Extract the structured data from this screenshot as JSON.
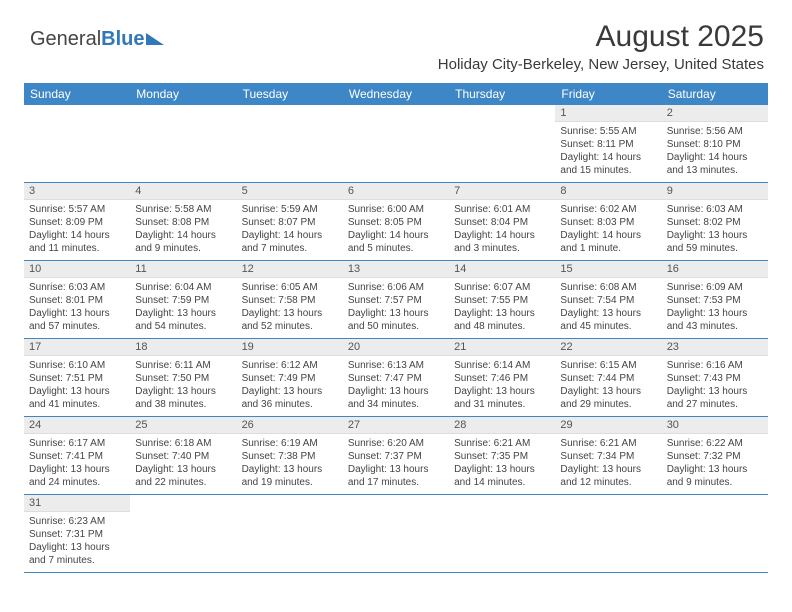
{
  "logo": {
    "part1": "General",
    "part2": "Blue"
  },
  "header": {
    "title": "August 2025",
    "subtitle": "Holiday City-Berkeley, New Jersey, United States"
  },
  "colors": {
    "header_bg": "#3d87c7",
    "rule": "#3d87c7",
    "daynum_bg": "#ececec"
  },
  "day_headers": [
    "Sunday",
    "Monday",
    "Tuesday",
    "Wednesday",
    "Thursday",
    "Friday",
    "Saturday"
  ],
  "weeks": [
    [
      {
        "n": "",
        "sr": "",
        "ss": "",
        "dl": ""
      },
      {
        "n": "",
        "sr": "",
        "ss": "",
        "dl": ""
      },
      {
        "n": "",
        "sr": "",
        "ss": "",
        "dl": ""
      },
      {
        "n": "",
        "sr": "",
        "ss": "",
        "dl": ""
      },
      {
        "n": "",
        "sr": "",
        "ss": "",
        "dl": ""
      },
      {
        "n": "1",
        "sr": "Sunrise: 5:55 AM",
        "ss": "Sunset: 8:11 PM",
        "dl": "Daylight: 14 hours and 15 minutes."
      },
      {
        "n": "2",
        "sr": "Sunrise: 5:56 AM",
        "ss": "Sunset: 8:10 PM",
        "dl": "Daylight: 14 hours and 13 minutes."
      }
    ],
    [
      {
        "n": "3",
        "sr": "Sunrise: 5:57 AM",
        "ss": "Sunset: 8:09 PM",
        "dl": "Daylight: 14 hours and 11 minutes."
      },
      {
        "n": "4",
        "sr": "Sunrise: 5:58 AM",
        "ss": "Sunset: 8:08 PM",
        "dl": "Daylight: 14 hours and 9 minutes."
      },
      {
        "n": "5",
        "sr": "Sunrise: 5:59 AM",
        "ss": "Sunset: 8:07 PM",
        "dl": "Daylight: 14 hours and 7 minutes."
      },
      {
        "n": "6",
        "sr": "Sunrise: 6:00 AM",
        "ss": "Sunset: 8:05 PM",
        "dl": "Daylight: 14 hours and 5 minutes."
      },
      {
        "n": "7",
        "sr": "Sunrise: 6:01 AM",
        "ss": "Sunset: 8:04 PM",
        "dl": "Daylight: 14 hours and 3 minutes."
      },
      {
        "n": "8",
        "sr": "Sunrise: 6:02 AM",
        "ss": "Sunset: 8:03 PM",
        "dl": "Daylight: 14 hours and 1 minute."
      },
      {
        "n": "9",
        "sr": "Sunrise: 6:03 AM",
        "ss": "Sunset: 8:02 PM",
        "dl": "Daylight: 13 hours and 59 minutes."
      }
    ],
    [
      {
        "n": "10",
        "sr": "Sunrise: 6:03 AM",
        "ss": "Sunset: 8:01 PM",
        "dl": "Daylight: 13 hours and 57 minutes."
      },
      {
        "n": "11",
        "sr": "Sunrise: 6:04 AM",
        "ss": "Sunset: 7:59 PM",
        "dl": "Daylight: 13 hours and 54 minutes."
      },
      {
        "n": "12",
        "sr": "Sunrise: 6:05 AM",
        "ss": "Sunset: 7:58 PM",
        "dl": "Daylight: 13 hours and 52 minutes."
      },
      {
        "n": "13",
        "sr": "Sunrise: 6:06 AM",
        "ss": "Sunset: 7:57 PM",
        "dl": "Daylight: 13 hours and 50 minutes."
      },
      {
        "n": "14",
        "sr": "Sunrise: 6:07 AM",
        "ss": "Sunset: 7:55 PM",
        "dl": "Daylight: 13 hours and 48 minutes."
      },
      {
        "n": "15",
        "sr": "Sunrise: 6:08 AM",
        "ss": "Sunset: 7:54 PM",
        "dl": "Daylight: 13 hours and 45 minutes."
      },
      {
        "n": "16",
        "sr": "Sunrise: 6:09 AM",
        "ss": "Sunset: 7:53 PM",
        "dl": "Daylight: 13 hours and 43 minutes."
      }
    ],
    [
      {
        "n": "17",
        "sr": "Sunrise: 6:10 AM",
        "ss": "Sunset: 7:51 PM",
        "dl": "Daylight: 13 hours and 41 minutes."
      },
      {
        "n": "18",
        "sr": "Sunrise: 6:11 AM",
        "ss": "Sunset: 7:50 PM",
        "dl": "Daylight: 13 hours and 38 minutes."
      },
      {
        "n": "19",
        "sr": "Sunrise: 6:12 AM",
        "ss": "Sunset: 7:49 PM",
        "dl": "Daylight: 13 hours and 36 minutes."
      },
      {
        "n": "20",
        "sr": "Sunrise: 6:13 AM",
        "ss": "Sunset: 7:47 PM",
        "dl": "Daylight: 13 hours and 34 minutes."
      },
      {
        "n": "21",
        "sr": "Sunrise: 6:14 AM",
        "ss": "Sunset: 7:46 PM",
        "dl": "Daylight: 13 hours and 31 minutes."
      },
      {
        "n": "22",
        "sr": "Sunrise: 6:15 AM",
        "ss": "Sunset: 7:44 PM",
        "dl": "Daylight: 13 hours and 29 minutes."
      },
      {
        "n": "23",
        "sr": "Sunrise: 6:16 AM",
        "ss": "Sunset: 7:43 PM",
        "dl": "Daylight: 13 hours and 27 minutes."
      }
    ],
    [
      {
        "n": "24",
        "sr": "Sunrise: 6:17 AM",
        "ss": "Sunset: 7:41 PM",
        "dl": "Daylight: 13 hours and 24 minutes."
      },
      {
        "n": "25",
        "sr": "Sunrise: 6:18 AM",
        "ss": "Sunset: 7:40 PM",
        "dl": "Daylight: 13 hours and 22 minutes."
      },
      {
        "n": "26",
        "sr": "Sunrise: 6:19 AM",
        "ss": "Sunset: 7:38 PM",
        "dl": "Daylight: 13 hours and 19 minutes."
      },
      {
        "n": "27",
        "sr": "Sunrise: 6:20 AM",
        "ss": "Sunset: 7:37 PM",
        "dl": "Daylight: 13 hours and 17 minutes."
      },
      {
        "n": "28",
        "sr": "Sunrise: 6:21 AM",
        "ss": "Sunset: 7:35 PM",
        "dl": "Daylight: 13 hours and 14 minutes."
      },
      {
        "n": "29",
        "sr": "Sunrise: 6:21 AM",
        "ss": "Sunset: 7:34 PM",
        "dl": "Daylight: 13 hours and 12 minutes."
      },
      {
        "n": "30",
        "sr": "Sunrise: 6:22 AM",
        "ss": "Sunset: 7:32 PM",
        "dl": "Daylight: 13 hours and 9 minutes."
      }
    ],
    [
      {
        "n": "31",
        "sr": "Sunrise: 6:23 AM",
        "ss": "Sunset: 7:31 PM",
        "dl": "Daylight: 13 hours and 7 minutes."
      },
      {
        "n": "",
        "sr": "",
        "ss": "",
        "dl": ""
      },
      {
        "n": "",
        "sr": "",
        "ss": "",
        "dl": ""
      },
      {
        "n": "",
        "sr": "",
        "ss": "",
        "dl": ""
      },
      {
        "n": "",
        "sr": "",
        "ss": "",
        "dl": ""
      },
      {
        "n": "",
        "sr": "",
        "ss": "",
        "dl": ""
      },
      {
        "n": "",
        "sr": "",
        "ss": "",
        "dl": ""
      }
    ]
  ]
}
